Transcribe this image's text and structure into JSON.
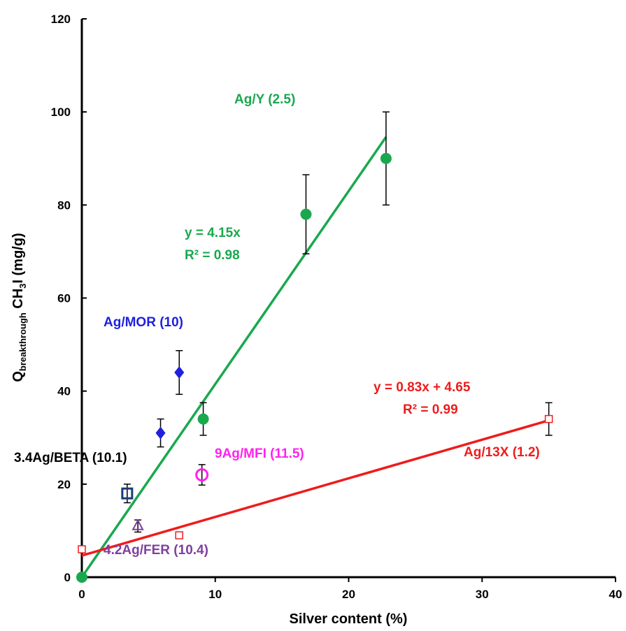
{
  "chart_data": {
    "type": "scatter",
    "xlabel": "Silver content (%)",
    "ylabel_main": "Q",
    "ylabel_sub": "breakthrough",
    "ylabel_rest_pre": " CH",
    "ylabel_rest_sub": "3",
    "ylabel_rest_post": "I (mg/g)",
    "xlim": [
      0,
      40
    ],
    "ylim": [
      0,
      120
    ],
    "xticks": [
      0,
      10,
      20,
      30,
      40
    ],
    "yticks": [
      0,
      20,
      40,
      60,
      80,
      100,
      120
    ],
    "grid": false,
    "series": [
      {
        "name": "Ag/Y (2.5)",
        "color": "#1aa84f",
        "marker": "circle-filled",
        "points": [
          {
            "x": 0,
            "y": 0
          },
          {
            "x": 9.1,
            "y": 34,
            "err": 3.5
          },
          {
            "x": 16.8,
            "y": 78,
            "err": 8.5
          },
          {
            "x": 22.8,
            "y": 90,
            "err": 10
          }
        ],
        "fit": {
          "equation": "y = 4.15x",
          "r2": "R² = 0.98",
          "slope": 4.15,
          "intercept": 0,
          "x_range": [
            0,
            22.8
          ]
        }
      },
      {
        "name": "Ag/13X (1.2)",
        "color": "#ee1c1c",
        "marker": "square-open-small",
        "points": [
          {
            "x": 0,
            "y": 6
          },
          {
            "x": 7.3,
            "y": 9
          },
          {
            "x": 35,
            "y": 34,
            "err": 3.5
          }
        ],
        "fit": {
          "equation": "y = 0.83x + 4.65",
          "r2": "R² = 0.99",
          "slope": 0.83,
          "intercept": 4.65,
          "x_range": [
            0,
            35
          ]
        }
      },
      {
        "name": "Ag/MOR (10)",
        "color": "#1f1fe0",
        "marker": "diamond-filled",
        "points": [
          {
            "x": 5.9,
            "y": 31,
            "err": 3
          },
          {
            "x": 7.3,
            "y": 44,
            "err": 4.7
          }
        ]
      },
      {
        "name": "3.4Ag/BETA (10.1)",
        "color": "#1a3a7a",
        "marker": "square-open-bold",
        "points": [
          {
            "x": 3.4,
            "y": 18,
            "err": 2
          }
        ]
      },
      {
        "name": "9Ag/MFI (11.5)",
        "color": "#ff22ee",
        "marker": "circle-open",
        "points": [
          {
            "x": 9,
            "y": 22,
            "err": 2.2
          }
        ]
      },
      {
        "name": "4.2Ag/FER (10.4)",
        "color": "#7f3fa0",
        "marker": "triangle-open",
        "points": [
          {
            "x": 4.2,
            "y": 11,
            "err": 1.3
          }
        ]
      }
    ]
  }
}
